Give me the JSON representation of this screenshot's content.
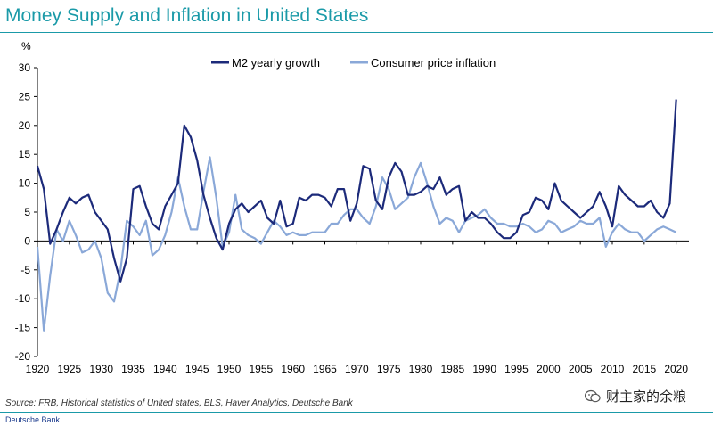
{
  "title": "Money Supply and Inflation in United States",
  "source": "Source: FRB, Historical statistics of United states,  BLS, Haver Analytics, Deutsche Bank",
  "footer": "Deutsche Bank",
  "watermark": "财主家的余粮",
  "watermark_icon": "chat-bubble-icon",
  "colors": {
    "title": "#1a9aa8",
    "m2": "#1c2a7a",
    "cpi": "#8aa8d8",
    "axis": "#000000"
  },
  "chart_data": {
    "type": "line",
    "title": "Money Supply and Inflation in United States",
    "ylabel": "%",
    "xlabel": "",
    "ylim": [
      -20,
      30
    ],
    "xlim": [
      1920,
      2022
    ],
    "yticks": [
      -20,
      -15,
      -10,
      -5,
      0,
      5,
      10,
      15,
      20,
      25,
      30
    ],
    "xticks": [
      1920,
      1925,
      1930,
      1935,
      1940,
      1945,
      1950,
      1955,
      1960,
      1965,
      1970,
      1975,
      1980,
      1985,
      1990,
      1995,
      2000,
      2005,
      2010,
      2015,
      2020
    ],
    "grid": false,
    "legend": "top-center",
    "series": [
      {
        "name": "M2 yearly growth",
        "color": "#1c2a7a",
        "points": [
          [
            1920,
            13
          ],
          [
            1921,
            9
          ],
          [
            1922,
            -0.5
          ],
          [
            1923,
            2
          ],
          [
            1924,
            5
          ],
          [
            1925,
            7.5
          ],
          [
            1926,
            6.5
          ],
          [
            1927,
            7.5
          ],
          [
            1928,
            8
          ],
          [
            1929,
            5
          ],
          [
            1930,
            3.5
          ],
          [
            1931,
            2
          ],
          [
            1932,
            -3
          ],
          [
            1933,
            -7
          ],
          [
            1934,
            -3
          ],
          [
            1935,
            9
          ],
          [
            1936,
            9.5
          ],
          [
            1937,
            6
          ],
          [
            1938,
            3
          ],
          [
            1939,
            2
          ],
          [
            1940,
            6
          ],
          [
            1941,
            8
          ],
          [
            1942,
            10
          ],
          [
            1943,
            20
          ],
          [
            1944,
            18
          ],
          [
            1945,
            14
          ],
          [
            1946,
            8
          ],
          [
            1947,
            4
          ],
          [
            1948,
            0.5
          ],
          [
            1949,
            -1.5
          ],
          [
            1950,
            3
          ],
          [
            1951,
            5.5
          ],
          [
            1952,
            6.5
          ],
          [
            1953,
            5
          ],
          [
            1954,
            6
          ],
          [
            1955,
            7
          ],
          [
            1956,
            4
          ],
          [
            1957,
            3
          ],
          [
            1958,
            7
          ],
          [
            1959,
            2.5
          ],
          [
            1960,
            3
          ],
          [
            1961,
            7.5
          ],
          [
            1962,
            7
          ],
          [
            1963,
            8
          ],
          [
            1964,
            8
          ],
          [
            1965,
            7.5
          ],
          [
            1966,
            6
          ],
          [
            1967,
            9
          ],
          [
            1968,
            9
          ],
          [
            1969,
            3.5
          ],
          [
            1970,
            6.5
          ],
          [
            1971,
            13
          ],
          [
            1972,
            12.5
          ],
          [
            1973,
            7
          ],
          [
            1974,
            5.5
          ],
          [
            1975,
            11
          ],
          [
            1976,
            13.5
          ],
          [
            1977,
            12
          ],
          [
            1978,
            8
          ],
          [
            1979,
            8
          ],
          [
            1980,
            8.5
          ],
          [
            1981,
            9.5
          ],
          [
            1982,
            9
          ],
          [
            1983,
            11
          ],
          [
            1984,
            8
          ],
          [
            1985,
            9
          ],
          [
            1986,
            9.5
          ],
          [
            1987,
            3.5
          ],
          [
            1988,
            5
          ],
          [
            1989,
            4
          ],
          [
            1990,
            4
          ],
          [
            1991,
            3
          ],
          [
            1992,
            1.5
          ],
          [
            1993,
            0.5
          ],
          [
            1994,
            0.5
          ],
          [
            1995,
            1.5
          ],
          [
            1996,
            4.5
          ],
          [
            1997,
            5
          ],
          [
            1998,
            7.5
          ],
          [
            1999,
            7
          ],
          [
            2000,
            5.5
          ],
          [
            2001,
            10
          ],
          [
            2002,
            7
          ],
          [
            2003,
            6
          ],
          [
            2004,
            5
          ],
          [
            2005,
            4
          ],
          [
            2006,
            5
          ],
          [
            2007,
            6
          ],
          [
            2008,
            8.5
          ],
          [
            2009,
            6
          ],
          [
            2010,
            2.5
          ],
          [
            2011,
            9.5
          ],
          [
            2012,
            8
          ],
          [
            2013,
            7
          ],
          [
            2014,
            6
          ],
          [
            2015,
            6
          ],
          [
            2016,
            7
          ],
          [
            2017,
            5
          ],
          [
            2018,
            4
          ],
          [
            2019,
            6.5
          ],
          [
            2020,
            24.5
          ]
        ]
      },
      {
        "name": "Consumer price inflation",
        "color": "#8aa8d8",
        "points": [
          [
            1920,
            -1
          ],
          [
            1921,
            -15.5
          ],
          [
            1922,
            -6
          ],
          [
            1923,
            2
          ],
          [
            1924,
            0
          ],
          [
            1925,
            3.5
          ],
          [
            1926,
            1
          ],
          [
            1927,
            -2
          ],
          [
            1928,
            -1.5
          ],
          [
            1929,
            0
          ],
          [
            1930,
            -3
          ],
          [
            1931,
            -9
          ],
          [
            1932,
            -10.5
          ],
          [
            1933,
            -5
          ],
          [
            1934,
            3.5
          ],
          [
            1935,
            2.5
          ],
          [
            1936,
            1
          ],
          [
            1937,
            3.5
          ],
          [
            1938,
            -2.5
          ],
          [
            1939,
            -1.5
          ],
          [
            1940,
            1
          ],
          [
            1941,
            5
          ],
          [
            1942,
            11
          ],
          [
            1943,
            6
          ],
          [
            1944,
            2
          ],
          [
            1945,
            2
          ],
          [
            1946,
            8.5
          ],
          [
            1947,
            14.5
          ],
          [
            1948,
            7.5
          ],
          [
            1949,
            -1
          ],
          [
            1950,
            1.5
          ],
          [
            1951,
            8
          ],
          [
            1952,
            2
          ],
          [
            1953,
            1
          ],
          [
            1954,
            0.5
          ],
          [
            1955,
            -0.5
          ],
          [
            1956,
            1.5
          ],
          [
            1957,
            3.5
          ],
          [
            1958,
            2.5
          ],
          [
            1959,
            1
          ],
          [
            1960,
            1.5
          ],
          [
            1961,
            1
          ],
          [
            1962,
            1
          ],
          [
            1963,
            1.5
          ],
          [
            1964,
            1.5
          ],
          [
            1965,
            1.5
          ],
          [
            1966,
            3
          ],
          [
            1967,
            3
          ],
          [
            1968,
            4.5
          ],
          [
            1969,
            5.5
          ],
          [
            1970,
            5.5
          ],
          [
            1971,
            4
          ],
          [
            1972,
            3
          ],
          [
            1973,
            6
          ],
          [
            1974,
            11
          ],
          [
            1975,
            9
          ],
          [
            1976,
            5.5
          ],
          [
            1977,
            6.5
          ],
          [
            1978,
            7.5
          ],
          [
            1979,
            11
          ],
          [
            1980,
            13.5
          ],
          [
            1981,
            10
          ],
          [
            1982,
            6
          ],
          [
            1983,
            3
          ],
          [
            1984,
            4
          ],
          [
            1985,
            3.5
          ],
          [
            1986,
            1.5
          ],
          [
            1987,
            3.5
          ],
          [
            1988,
            4
          ],
          [
            1989,
            4.5
          ],
          [
            1990,
            5.5
          ],
          [
            1991,
            4
          ],
          [
            1992,
            3
          ],
          [
            1993,
            3
          ],
          [
            1994,
            2.5
          ],
          [
            1995,
            2.5
          ],
          [
            1996,
            3
          ],
          [
            1997,
            2.5
          ],
          [
            1998,
            1.5
          ],
          [
            1999,
            2
          ],
          [
            2000,
            3.5
          ],
          [
            2001,
            3
          ],
          [
            2002,
            1.5
          ],
          [
            2003,
            2
          ],
          [
            2004,
            2.5
          ],
          [
            2005,
            3.5
          ],
          [
            2006,
            3
          ],
          [
            2007,
            3
          ],
          [
            2008,
            4
          ],
          [
            2009,
            -1
          ],
          [
            2010,
            1.5
          ],
          [
            2011,
            3
          ],
          [
            2012,
            2
          ],
          [
            2013,
            1.5
          ],
          [
            2014,
            1.5
          ],
          [
            2015,
            0
          ],
          [
            2016,
            1
          ],
          [
            2017,
            2
          ],
          [
            2018,
            2.5
          ],
          [
            2019,
            2
          ],
          [
            2020,
            1.5
          ]
        ]
      }
    ]
  }
}
